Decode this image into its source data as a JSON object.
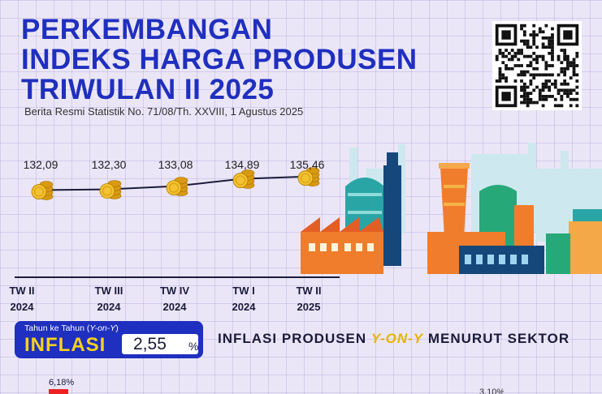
{
  "title_lines": [
    "PERKEMBANGAN",
    "INDEKS HARGA PRODUSEN",
    "TRIWULAN II 2025"
  ],
  "subtitle": "Berita Resmi Statistik No. 71/08/Th. XXVIII, 1 Agustus 2025",
  "chart_data": {
    "type": "line",
    "categories": [
      "TW II 2024",
      "TW III 2024",
      "TW IV 2024",
      "TW I 2024",
      "TW II 2025"
    ],
    "values": [
      132.09,
      132.3,
      133.08,
      134.89,
      135.46
    ],
    "value_labels": [
      "132,09",
      "132,30",
      "133,08",
      "134,89",
      "135,46"
    ]
  },
  "periods": [
    {
      "q": "TW II",
      "year": "2024"
    },
    {
      "q": "TW III",
      "year": "2024"
    },
    {
      "q": "TW IV",
      "year": "2024"
    },
    {
      "q": "TW I",
      "year": "2024"
    },
    {
      "q": "TW II",
      "year": "2025"
    }
  ],
  "inflation": {
    "subtitle_prefix": "Tahun ke Tahun (",
    "subtitle_italic": "Y-on-Y",
    "subtitle_suffix": ")",
    "label": "INFLASI",
    "value": "2,55",
    "unit": "%"
  },
  "sector_heading": {
    "before": "INFLASI PRODUSEN ",
    "highlight": "Y-ON-Y",
    "after": " MENURUT SEKTOR"
  },
  "sector_partial": {
    "first_value": "6,18%",
    "cut_value": "3,10%"
  },
  "colors": {
    "primary": "#1f2fbf",
    "accent": "#f6d21a",
    "background": "#ebe6f7",
    "coin": "#e8b422"
  },
  "icons": [
    "qr-code-icon",
    "coin-stack-icon",
    "factory-illustration"
  ]
}
